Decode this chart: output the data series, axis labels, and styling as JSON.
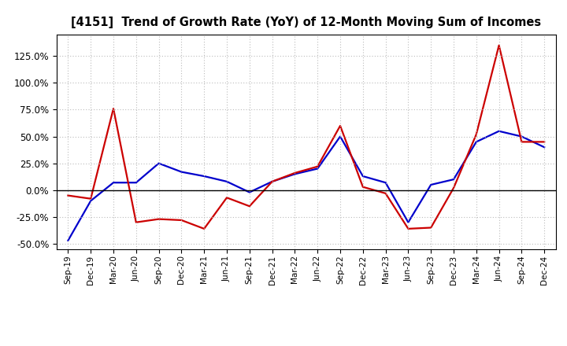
{
  "title": "[4151]  Trend of Growth Rate (YoY) of 12-Month Moving Sum of Incomes",
  "labels": [
    "Sep-19",
    "Dec-19",
    "Mar-20",
    "Jun-20",
    "Sep-20",
    "Dec-20",
    "Mar-21",
    "Jun-21",
    "Sep-21",
    "Dec-21",
    "Mar-22",
    "Jun-22",
    "Sep-22",
    "Dec-22",
    "Mar-23",
    "Jun-23",
    "Sep-23",
    "Dec-23",
    "Mar-24",
    "Jun-24",
    "Sep-24",
    "Dec-24"
  ],
  "ordinary_income": [
    -0.47,
    -0.1,
    0.07,
    0.07,
    0.25,
    0.17,
    0.13,
    0.08,
    -0.02,
    0.08,
    0.15,
    0.2,
    0.5,
    0.13,
    0.07,
    -0.3,
    0.05,
    0.1,
    0.45,
    0.55,
    0.5,
    0.4
  ],
  "net_income": [
    -0.05,
    -0.08,
    0.76,
    -0.3,
    -0.27,
    -0.28,
    -0.36,
    -0.07,
    -0.15,
    0.08,
    0.16,
    0.22,
    0.6,
    0.03,
    -0.03,
    -0.36,
    -0.35,
    0.02,
    0.52,
    1.35,
    0.45,
    0.45
  ],
  "ordinary_color": "#0000cc",
  "net_color": "#cc0000",
  "ylim": [
    -0.55,
    1.45
  ],
  "yticks": [
    -0.5,
    -0.25,
    0.0,
    0.25,
    0.5,
    0.75,
    1.0,
    1.25
  ],
  "background_color": "#ffffff",
  "grid_color": "#bbbbbb"
}
